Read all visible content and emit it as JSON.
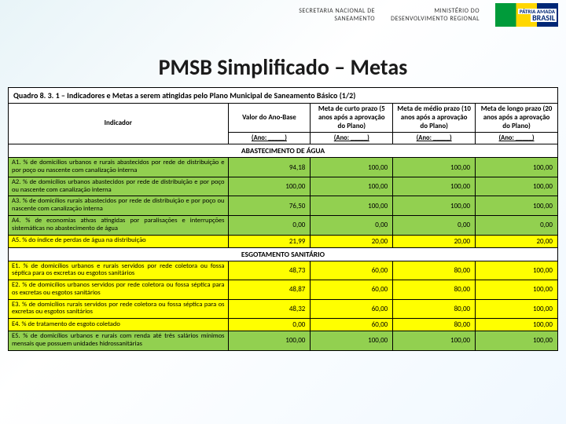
{
  "header": {
    "left": "SECRETARIA NACIONAL DE\nSANEAMENTO",
    "right": "MINISTÉRIO DO\nDESENVOLVIMENTO REGIONAL",
    "logo_top": "PÁTRIA AMADA",
    "logo_bot": "BRASIL"
  },
  "title": "PMSB Simplificado – Metas",
  "table": {
    "caption": "Quadro 8. 3. 1 – Indicadores e Metas a serem atingidas pelo Plano Municipal de Saneamento Básico (1/2)",
    "columns": {
      "indicator": "Indicador",
      "base": "Valor do Ano-Base",
      "short": "Meta de curto prazo (5 anos após a aprovação do Plano)",
      "mid": "Meta de médio prazo (10 anos após a aprovação do Plano)",
      "long": "Meta de longo prazo (20 anos após a aprovação do Plano)",
      "year": "(Ano: _____)"
    },
    "section1": "ABASTECIMENTO DE ÁGUA",
    "rows1": [
      {
        "ind": "A1. % de domicílios urbanos e rurais abastecidos por rede de distribuição e por poço ou nascente com canalização interna",
        "b": "94,18",
        "s": "100,00",
        "m": "100,00",
        "l": "100,00",
        "color": "green"
      },
      {
        "ind": "A2. % de domicílios urbanos abastecidos por rede de distribuição e por poço ou nascente com canalização interna",
        "b": "100,00",
        "s": "100,00",
        "m": "100,00",
        "l": "100,00",
        "color": "green"
      },
      {
        "ind": "A3. % de domicílios rurais abastecidos por rede de distribuição e por poço ou nascente com canalização interna",
        "b": "76,50",
        "s": "100,00",
        "m": "100,00",
        "l": "100,00",
        "color": "green"
      },
      {
        "ind": "A4. % de economias ativas atingidas por paralisações e interrupções sistemáticas no abastecimento de água",
        "b": "0,00",
        "s": "0,00",
        "m": "0,00",
        "l": "0,00",
        "color": "green"
      },
      {
        "ind": "A5. % do índice de perdas de água na distribuição",
        "b": "21,99",
        "s": "20,00",
        "m": "20,00",
        "l": "20,00",
        "color": "yellow"
      }
    ],
    "section2": "ESGOTAMENTO SANITÁRIO",
    "rows2": [
      {
        "ind": "E1. % de domicílios urbanos e rurais servidos por rede coletora ou fossa séptica para os excretas ou esgotos sanitários",
        "b": "48,73",
        "s": "60,00",
        "m": "80,00",
        "l": "100,00",
        "color": "yellow"
      },
      {
        "ind": "E2. % de domicílios urbanos servidos por rede coletora ou fossa séptica para os excretas ou esgotos sanitários",
        "b": "48,87",
        "s": "60,00",
        "m": "80,00",
        "l": "100,00",
        "color": "yellow"
      },
      {
        "ind": "E3. % de domicílios rurais servidos por rede coletora ou fossa séptica para os excretas ou esgotos sanitários",
        "b": "48,32",
        "s": "60,00",
        "m": "80,00",
        "l": "100,00",
        "color": "yellow"
      },
      {
        "ind": "E4. % de tratamento de esgoto coletado",
        "b": "0,00",
        "s": "60,00",
        "m": "80,00",
        "l": "100,00",
        "color": "yellow"
      },
      {
        "ind": "E5. % de domicílios urbanos e rurais com renda até três salários mínimos mensais que possuem unidades hidrossanitárias",
        "b": "100,00",
        "s": "100,00",
        "m": "100,00",
        "l": "100,00",
        "color": "green"
      }
    ]
  },
  "colors": {
    "green": "#92d050",
    "yellow": "#ffff00"
  }
}
